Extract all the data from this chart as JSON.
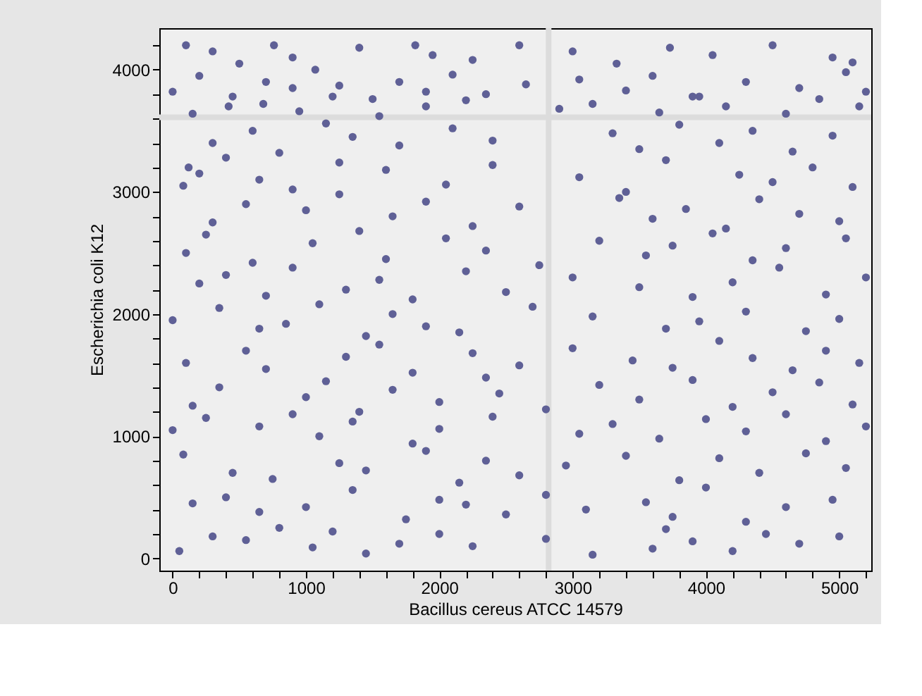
{
  "chart_data": {
    "type": "scatter",
    "xlabel": "Bacillus cereus ATCC 14579",
    "ylabel": "Escherichia coli K12",
    "xlim": [
      -100,
      5240
    ],
    "ylim": [
      -100,
      4340
    ],
    "xticks": [
      0,
      {
        "value": 200,
        "label": null
      },
      {
        "value": 400,
        "label": null
      },
      {
        "value": 600,
        "label": null
      },
      {
        "value": 800,
        "label": null
      },
      1000,
      {
        "value": 1200,
        "label": null
      },
      {
        "value": 1400,
        "label": null
      },
      {
        "value": 1600,
        "label": null
      },
      {
        "value": 1800,
        "label": null
      },
      2000,
      {
        "value": 2200,
        "label": null
      },
      {
        "value": 2400,
        "label": null
      },
      {
        "value": 2600,
        "label": null
      },
      {
        "value": 2800,
        "label": null
      },
      3000,
      {
        "value": 3200,
        "label": null
      },
      {
        "value": 3400,
        "label": null
      },
      {
        "value": 3600,
        "label": null
      },
      {
        "value": 3800,
        "label": null
      },
      4000,
      {
        "value": 4200,
        "label": null
      },
      {
        "value": 4400,
        "label": null
      },
      {
        "value": 4600,
        "label": null
      },
      {
        "value": 4800,
        "label": null
      },
      5000,
      {
        "value": 5200,
        "label": null
      }
    ],
    "yticks": [
      0,
      {
        "value": 200,
        "label": null
      },
      {
        "value": 400,
        "label": null
      },
      {
        "value": 600,
        "label": null
      },
      {
        "value": 800,
        "label": null
      },
      1000,
      {
        "value": 1200,
        "label": null
      },
      {
        "value": 1400,
        "label": null
      },
      {
        "value": 1600,
        "label": null
      },
      {
        "value": 1800,
        "label": null
      },
      2000,
      {
        "value": 2200,
        "label": null
      },
      {
        "value": 2400,
        "label": null
      },
      {
        "value": 2600,
        "label": null
      },
      {
        "value": 2800,
        "label": null
      },
      3000,
      {
        "value": 3200,
        "label": null
      },
      {
        "value": 3400,
        "label": null
      },
      {
        "value": 3600,
        "label": null
      },
      {
        "value": 3800,
        "label": null
      },
      4000,
      {
        "value": 4200,
        "label": null
      }
    ],
    "grid": false,
    "marker": "circle",
    "ref_lines": [
      {
        "axis": "x",
        "value": 2820,
        "color": "#dcdcdc"
      },
      {
        "axis": "y",
        "value": 3610,
        "color": "#dcdcdc"
      }
    ],
    "series": [
      {
        "color": "#5f6096",
        "x": [
          100,
          300,
          500,
          760,
          900,
          1400,
          1820,
          1950,
          2250,
          2600,
          3000,
          3330,
          3730,
          4050,
          4500,
          4950,
          5100,
          0,
          200,
          450,
          700,
          900,
          1070,
          1250,
          1500,
          1700,
          1900,
          2100,
          2350,
          2650,
          3050,
          3400,
          3600,
          3950,
          4300,
          4700,
          5050,
          5200,
          150,
          420,
          680,
          950,
          1200,
          1550,
          1900,
          2200,
          2900,
          3150,
          3650,
          3900,
          4150,
          4600,
          4850,
          5150,
          300,
          600,
          800,
          1150,
          1350,
          1700,
          2100,
          2400,
          3300,
          3500,
          3800,
          4100,
          4350,
          4650,
          4950,
          80,
          120,
          200,
          400,
          650,
          900,
          1250,
          1600,
          2050,
          2400,
          3050,
          3400,
          3700,
          4250,
          4500,
          4800,
          5100,
          300,
          550,
          1000,
          1250,
          1650,
          1900,
          2250,
          2600,
          3350,
          3600,
          3850,
          4150,
          4400,
          4700,
          5000,
          100,
          250,
          600,
          1050,
          1400,
          1600,
          2050,
          2350,
          2750,
          3200,
          3550,
          3750,
          4050,
          4350,
          4600,
          5050,
          200,
          400,
          700,
          900,
          1300,
          1550,
          1800,
          2200,
          2500,
          3000,
          3500,
          3900,
          4200,
          4550,
          4900,
          5200,
          0,
          350,
          650,
          850,
          1100,
          1450,
          1650,
          1900,
          2150,
          2700,
          3150,
          3700,
          3950,
          4300,
          4750,
          5000,
          100,
          550,
          700,
          1300,
          1550,
          1800,
          2250,
          2600,
          3000,
          3450,
          3750,
          4100,
          4350,
          4650,
          4900,
          5150,
          150,
          350,
          1000,
          1150,
          1400,
          1650,
          2000,
          2350,
          2450,
          2800,
          3200,
          3500,
          3900,
          4200,
          4500,
          4850,
          5100,
          0,
          250,
          650,
          900,
          1100,
          1350,
          1800,
          2000,
          2400,
          3050,
          3300,
          3650,
          4000,
          4300,
          4600,
          4900,
          5200,
          80,
          450,
          750,
          1250,
          1450,
          1900,
          2150,
          2350,
          2600,
          2950,
          3400,
          3800,
          4100,
          4400,
          4750,
          5050,
          150,
          400,
          650,
          1000,
          1350,
          1750,
          2000,
          2200,
          2500,
          2800,
          3100,
          3550,
          3750,
          4000,
          4300,
          4600,
          4950,
          50,
          300,
          550,
          800,
          1050,
          1200,
          1450,
          1700,
          2000,
          2250,
          2800,
          3150,
          3600,
          3700,
          3900,
          4200,
          4450,
          4700,
          5000
        ],
        "values": [
          4200,
          4150,
          4050,
          4200,
          4100,
          4180,
          4200,
          4120,
          4080,
          4200,
          4150,
          4050,
          4180,
          4120,
          4200,
          4100,
          4060,
          3820,
          3950,
          3780,
          3900,
          3850,
          4000,
          3870,
          3760,
          3900,
          3820,
          3960,
          3800,
          3880,
          3920,
          3830,
          3950,
          3780,
          3900,
          3850,
          3980,
          3820,
          3640,
          3700,
          3720,
          3660,
          3780,
          3620,
          3700,
          3750,
          3680,
          3720,
          3650,
          3780,
          3700,
          3640,
          3760,
          3700,
          3400,
          3500,
          3320,
          3560,
          3450,
          3380,
          3520,
          3420,
          3480,
          3350,
          3550,
          3400,
          3500,
          3330,
          3460,
          3050,
          3200,
          3150,
          3280,
          3100,
          3020,
          3240,
          3180,
          3060,
          3220,
          3120,
          3000,
          3260,
          3140,
          3080,
          3200,
          3040,
          2750,
          2900,
          2850,
          2980,
          2800,
          2920,
          2720,
          2880,
          2950,
          2780,
          2860,
          2700,
          2940,
          2820,
          2760,
          2500,
          2650,
          2420,
          2580,
          2680,
          2450,
          2620,
          2520,
          2400,
          2600,
          2480,
          2560,
          2660,
          2440,
          2540,
          2620,
          2250,
          2320,
          2150,
          2380,
          2200,
          2280,
          2120,
          2350,
          2180,
          2300,
          2220,
          2140,
          2260,
          2380,
          2160,
          2300,
          1950,
          2050,
          1880,
          1920,
          2080,
          1820,
          2000,
          1900,
          1850,
          2060,
          1980,
          1880,
          1940,
          2020,
          1860,
          1960,
          1600,
          1700,
          1550,
          1650,
          1750,
          1520,
          1680,
          1580,
          1720,
          1620,
          1560,
          1780,
          1640,
          1540,
          1700,
          1600,
          1250,
          1400,
          1320,
          1450,
          1200,
          1380,
          1280,
          1480,
          1350,
          1220,
          1420,
          1300,
          1460,
          1240,
          1360,
          1440,
          1260,
          1050,
          1150,
          1080,
          1180,
          1000,
          1120,
          940,
          1060,
          1160,
          1020,
          1100,
          980,
          1140,
          1040,
          1180,
          960,
          1080,
          850,
          700,
          650,
          780,
          720,
          880,
          620,
          800,
          680,
          760,
          840,
          640,
          820,
          700,
          860,
          740,
          450,
          500,
          380,
          420,
          560,
          320,
          480,
          440,
          360,
          520,
          400,
          460,
          340,
          580,
          300,
          420,
          480,
          60,
          180,
          150,
          250,
          90,
          220,
          40,
          120,
          200,
          100,
          160,
          30,
          80,
          240,
          140,
          60,
          200,
          120,
          180
        ]
      }
    ]
  }
}
